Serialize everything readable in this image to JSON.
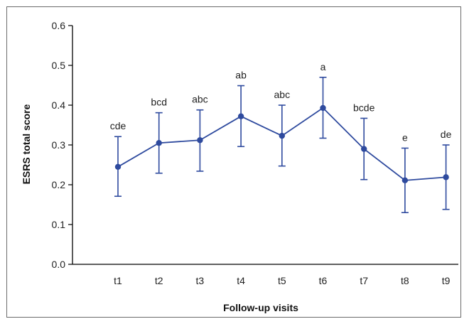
{
  "chart_data": {
    "type": "line",
    "title": "",
    "xlabel": "Follow-up visits",
    "ylabel": "ESRS total score",
    "ylim": [
      0,
      0.6
    ],
    "yticks": [
      "0.0",
      "0.1",
      "0.2",
      "0.3",
      "0.4",
      "0.5",
      "0.6"
    ],
    "categories": [
      "t1",
      "t2",
      "t3",
      "t4",
      "t5",
      "t6",
      "t7",
      "t8",
      "t9"
    ],
    "series": [
      {
        "values": [
          0.245,
          0.305,
          0.312,
          0.372,
          0.323,
          0.393,
          0.29,
          0.211,
          0.219
        ],
        "error_low": [
          0.171,
          0.229,
          0.234,
          0.296,
          0.247,
          0.317,
          0.213,
          0.13,
          0.138
        ],
        "error_high": [
          0.321,
          0.381,
          0.388,
          0.449,
          0.4,
          0.47,
          0.367,
          0.292,
          0.3
        ],
        "significance_labels": [
          "cde",
          "bcd",
          "abc",
          "ab",
          "abc",
          "a",
          "bcde",
          "e",
          "de"
        ]
      }
    ],
    "grid": false,
    "legend": "none",
    "colors": {
      "series": "#2e4a9e",
      "axis": "#000000",
      "frame": "#6b6b6b"
    }
  }
}
